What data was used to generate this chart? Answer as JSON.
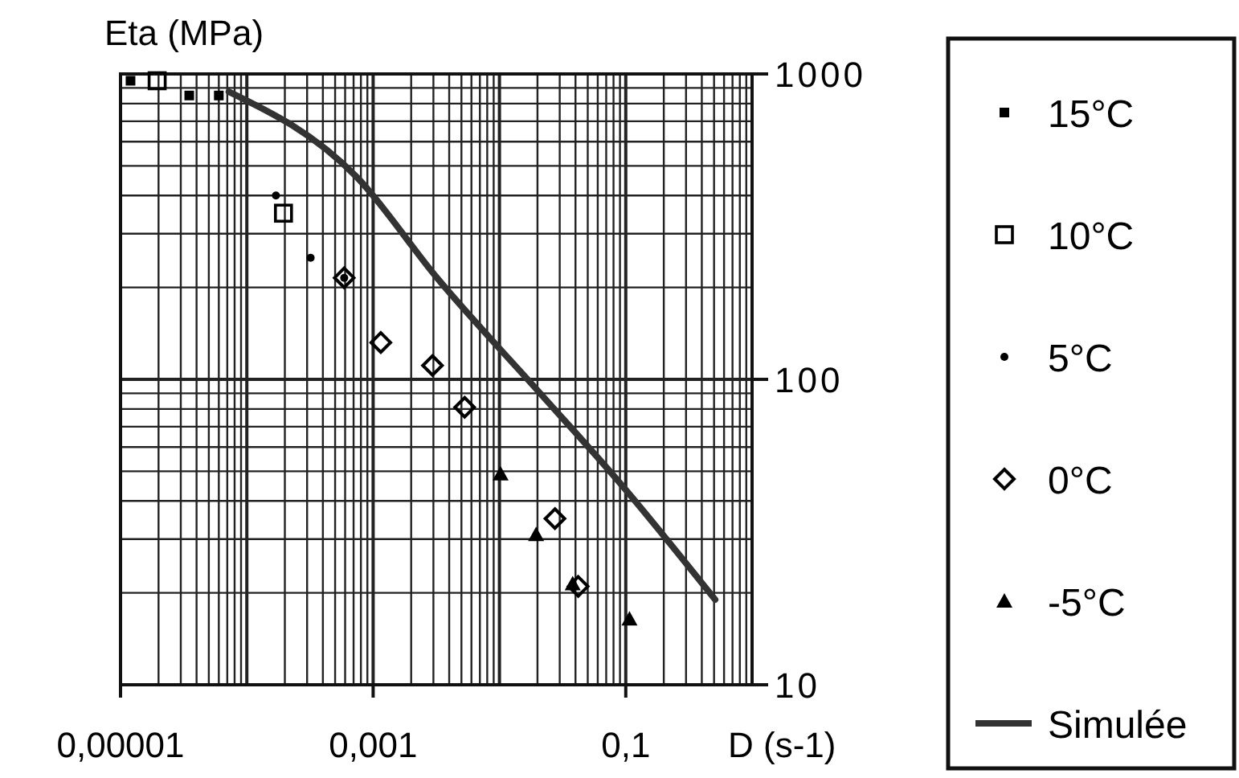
{
  "chart_data": {
    "type": "scatter",
    "ylabel": "Eta (MPa)",
    "xlabel": "D (s-1)",
    "log": "xy",
    "grid": true,
    "legend": "right",
    "xlim": [
      1e-05,
      1
    ],
    "xticks": [
      {
        "value": 1e-05,
        "label": "0,00001"
      },
      {
        "value": 0.001,
        "label": "0,001"
      },
      {
        "value": 0.1,
        "label": "0,1"
      }
    ],
    "ylim": [
      10,
      1000
    ],
    "yticks": [
      10,
      100,
      1000
    ],
    "series": [
      {
        "name": "15°C",
        "color": "#000000",
        "marker": "square",
        "x": [
          1.2e-05,
          3.5e-05,
          6e-05
        ],
        "values": [
          950,
          850,
          850
        ]
      },
      {
        "name": "10°C",
        "color": "#000000",
        "marker": "square",
        "x": [
          1.95e-05,
          0.000195
        ],
        "values": [
          950,
          350
        ]
      },
      {
        "name": "5°C",
        "color": "#000000",
        "marker": "circle",
        "x": [
          0.00017,
          0.00032,
          0.00059
        ],
        "values": [
          400,
          250,
          215
        ]
      },
      {
        "name": "0°C",
        "color": "#000000",
        "marker": "diamond",
        "x": [
          0.00059,
          0.00115,
          0.00295,
          0.0053,
          0.0275,
          0.042
        ],
        "values": [
          215,
          132,
          111,
          81,
          35,
          21
        ]
      },
      {
        "name": "-5°C",
        "color": "#000000",
        "marker": "triangle",
        "x": [
          0.0102,
          0.0195,
          0.038,
          0.107
        ],
        "values": [
          49,
          31,
          21.4,
          16.4
        ]
      },
      {
        "name": "Simulée",
        "type": "line",
        "color": "#333333",
        "marker": "none",
        "line_style": "solid",
        "x": [
          7.2e-05,
          0.00074,
          0.0032,
          0.021,
          0.089,
          0.51
        ],
        "values": [
          875,
          460,
          215,
          90,
          46,
          19
        ]
      }
    ]
  }
}
